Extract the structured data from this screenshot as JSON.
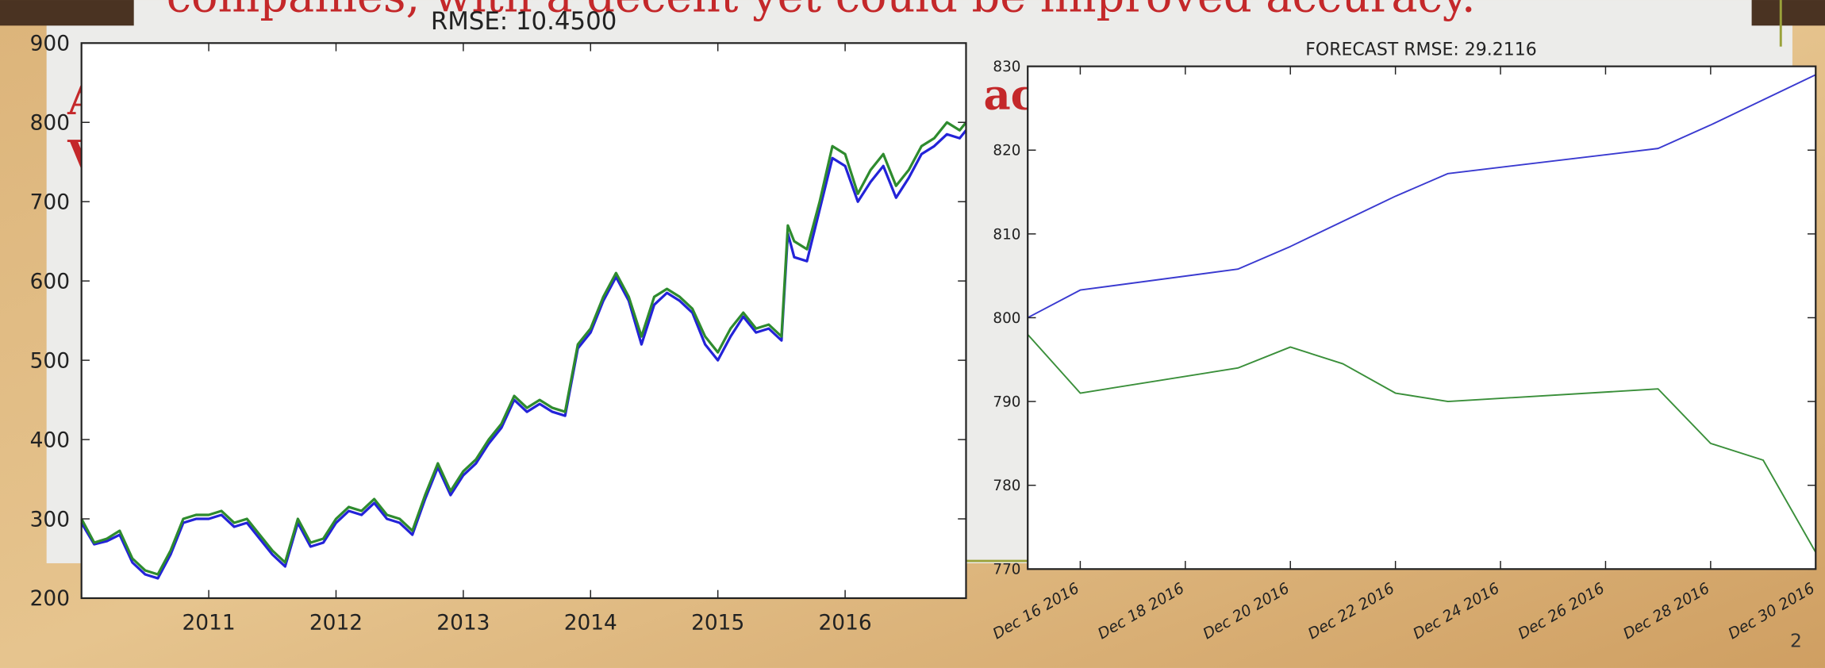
{
  "slide": {
    "heading": "companies, with a decent yet could be improved accuracy.",
    "fragments": [
      "A",
      "V",
      "ac"
    ],
    "page_number": "2"
  },
  "chart_data": [
    {
      "type": "line",
      "title": "RMSE: 10.4500",
      "x": [
        2010.0,
        2010.1,
        2010.2,
        2010.3,
        2010.4,
        2010.5,
        2010.6,
        2010.7,
        2010.8,
        2010.9,
        2011.0,
        2011.1,
        2011.2,
        2011.3,
        2011.4,
        2011.5,
        2011.6,
        2011.7,
        2011.8,
        2011.9,
        2012.0,
        2012.1,
        2012.2,
        2012.3,
        2012.4,
        2012.5,
        2012.6,
        2012.7,
        2012.8,
        2012.9,
        2013.0,
        2013.1,
        2013.2,
        2013.3,
        2013.4,
        2013.5,
        2013.6,
        2013.7,
        2013.8,
        2013.9,
        2014.0,
        2014.1,
        2014.2,
        2014.3,
        2014.4,
        2014.5,
        2014.6,
        2014.7,
        2014.8,
        2014.9,
        2015.0,
        2015.1,
        2015.2,
        2015.3,
        2015.4,
        2015.5,
        2015.55,
        2015.6,
        2015.7,
        2015.8,
        2015.9,
        2016.0,
        2016.1,
        2016.2,
        2016.3,
        2016.4,
        2016.5,
        2016.6,
        2016.7,
        2016.8,
        2016.9,
        2016.95
      ],
      "series": [
        {
          "color": "#2323d8",
          "values": [
            295,
            268,
            272,
            280,
            245,
            230,
            225,
            255,
            295,
            300,
            300,
            305,
            290,
            295,
            275,
            255,
            240,
            295,
            265,
            270,
            295,
            310,
            305,
            320,
            300,
            295,
            280,
            325,
            365,
            330,
            355,
            370,
            395,
            415,
            450,
            435,
            445,
            435,
            430,
            515,
            535,
            575,
            605,
            575,
            520,
            570,
            585,
            575,
            560,
            520,
            500,
            530,
            555,
            535,
            540,
            525,
            660,
            630,
            625,
            690,
            755,
            745,
            700,
            725,
            745,
            705,
            730,
            760,
            770,
            785,
            780,
            790
          ]
        },
        {
          "color": "#2e8b2e",
          "values": [
            300,
            270,
            275,
            285,
            250,
            235,
            230,
            260,
            300,
            305,
            305,
            310,
            295,
            300,
            280,
            260,
            245,
            300,
            270,
            275,
            300,
            315,
            310,
            325,
            305,
            300,
            285,
            330,
            370,
            335,
            360,
            375,
            400,
            420,
            455,
            440,
            450,
            440,
            435,
            520,
            540,
            580,
            610,
            580,
            530,
            580,
            590,
            580,
            565,
            530,
            510,
            540,
            560,
            540,
            545,
            530,
            670,
            650,
            640,
            700,
            770,
            760,
            710,
            740,
            760,
            720,
            740,
            770,
            780,
            800,
            790,
            800
          ]
        }
      ],
      "xlim": [
        2010.0,
        2016.95
      ],
      "xticks": [
        2011,
        2012,
        2013,
        2014,
        2015,
        2016
      ],
      "ylim": [
        200,
        900
      ],
      "yticks": [
        200,
        300,
        400,
        500,
        600,
        700,
        800,
        900
      ]
    },
    {
      "type": "line",
      "title": "FORECAST RMSE: 29.2116",
      "x": [
        "2016-12-15",
        "2016-12-16",
        "2016-12-19",
        "2016-12-20",
        "2016-12-21",
        "2016-12-22",
        "2016-12-23",
        "2016-12-27",
        "2016-12-28",
        "2016-12-29",
        "2016-12-30"
      ],
      "series": [
        {
          "color": "#3a3ad0",
          "values": [
            800,
            803.3,
            805.8,
            808.5,
            811.5,
            814.5,
            817.2,
            820.2,
            823,
            826,
            829
          ]
        },
        {
          "color": "#3a8f3a",
          "values": [
            798,
            791,
            794,
            796.5,
            794.5,
            791,
            790,
            791.5,
            785,
            783,
            772
          ]
        }
      ],
      "xlim": [
        "2016-12-15",
        "2016-12-30"
      ],
      "xticks": [
        {
          "value": "2016-12-16",
          "label": "Dec 16 2016"
        },
        {
          "value": "2016-12-18",
          "label": "Dec 18 2016"
        },
        {
          "value": "2016-12-20",
          "label": "Dec 20 2016"
        },
        {
          "value": "2016-12-22",
          "label": "Dec 22 2016"
        },
        {
          "value": "2016-12-24",
          "label": "Dec 24 2016"
        },
        {
          "value": "2016-12-26",
          "label": "Dec 26 2016"
        },
        {
          "value": "2016-12-28",
          "label": "Dec 28 2016"
        },
        {
          "value": "2016-12-30",
          "label": "Dec 30 2016"
        }
      ],
      "ylim": [
        770,
        830
      ],
      "yticks": [
        770,
        780,
        790,
        800,
        810,
        820,
        830
      ]
    }
  ]
}
